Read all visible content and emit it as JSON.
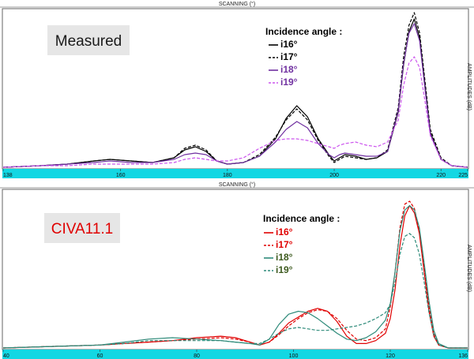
{
  "chart_data": [
    {
      "type": "line",
      "header": "SCANNING (°)",
      "right_label": "AMPLITUDES (dB)",
      "badge": "Measured",
      "legend_title": "Incidence angle :",
      "xlim": [
        138,
        225
      ],
      "ylim": [
        0,
        1
      ],
      "x_ticks": [
        "138",
        "160",
        "180",
        "200",
        "220",
        "225"
      ],
      "x_tick_values": [
        138,
        160,
        180,
        200,
        220,
        225
      ],
      "series": [
        {
          "name": "i16°",
          "color": "#000000",
          "dash": "solid",
          "x": [
            138,
            145,
            150,
            155,
            158,
            162,
            166,
            170,
            172,
            174,
            176,
            178,
            180,
            183,
            186,
            189,
            191,
            193,
            195,
            197,
            199,
            200,
            201,
            202,
            204,
            206,
            208,
            210,
            212,
            213,
            214,
            215,
            216,
            217,
            218,
            220,
            222,
            225
          ],
          "y": [
            0,
            0.01,
            0.02,
            0.04,
            0.05,
            0.04,
            0.03,
            0.06,
            0.11,
            0.13,
            0.1,
            0.04,
            0.02,
            0.03,
            0.07,
            0.18,
            0.31,
            0.39,
            0.32,
            0.18,
            0.08,
            0.04,
            0.06,
            0.08,
            0.07,
            0.05,
            0.06,
            0.1,
            0.35,
            0.65,
            0.86,
            0.94,
            0.82,
            0.52,
            0.22,
            0.05,
            0.01,
            0
          ]
        },
        {
          "name": "i17°",
          "color": "#000000",
          "dash": "dashed",
          "x": [
            138,
            145,
            150,
            155,
            158,
            162,
            166,
            170,
            172,
            174,
            176,
            178,
            180,
            183,
            186,
            189,
            191,
            193,
            195,
            197,
            199,
            200,
            201,
            202,
            204,
            206,
            208,
            210,
            212,
            213,
            214,
            215,
            216,
            217,
            218,
            220,
            222,
            225
          ],
          "y": [
            0,
            0.01,
            0.02,
            0.04,
            0.05,
            0.04,
            0.03,
            0.06,
            0.12,
            0.14,
            0.11,
            0.04,
            0.02,
            0.03,
            0.08,
            0.19,
            0.3,
            0.37,
            0.3,
            0.17,
            0.07,
            0.03,
            0.05,
            0.07,
            0.06,
            0.05,
            0.06,
            0.11,
            0.38,
            0.7,
            0.9,
            0.98,
            0.85,
            0.55,
            0.24,
            0.06,
            0.01,
            0
          ]
        },
        {
          "name": "i18°",
          "color": "#7030a0",
          "dash": "solid",
          "x": [
            138,
            145,
            150,
            155,
            158,
            162,
            166,
            170,
            172,
            174,
            176,
            178,
            180,
            183,
            186,
            189,
            191,
            193,
            195,
            197,
            199,
            200,
            201,
            202,
            204,
            206,
            208,
            210,
            212,
            213,
            214,
            215,
            216,
            217,
            218,
            220,
            222,
            225
          ],
          "y": [
            0,
            0.01,
            0.02,
            0.03,
            0.04,
            0.03,
            0.03,
            0.05,
            0.08,
            0.09,
            0.08,
            0.04,
            0.02,
            0.03,
            0.07,
            0.16,
            0.24,
            0.29,
            0.25,
            0.15,
            0.08,
            0.06,
            0.08,
            0.09,
            0.08,
            0.07,
            0.07,
            0.1,
            0.36,
            0.66,
            0.85,
            0.91,
            0.8,
            0.5,
            0.21,
            0.05,
            0.01,
            0
          ]
        },
        {
          "name": "i19°",
          "color": "#cc55ee",
          "dash": "dashed",
          "x": [
            138,
            145,
            150,
            155,
            158,
            162,
            166,
            170,
            172,
            174,
            176,
            178,
            180,
            183,
            186,
            189,
            191,
            193,
            195,
            197,
            199,
            200,
            201,
            202,
            204,
            206,
            208,
            210,
            212,
            213,
            214,
            215,
            216,
            217,
            218,
            220,
            222,
            225
          ],
          "y": [
            0,
            0.01,
            0.01,
            0.02,
            0.02,
            0.02,
            0.02,
            0.03,
            0.05,
            0.06,
            0.05,
            0.04,
            0.04,
            0.06,
            0.12,
            0.17,
            0.18,
            0.18,
            0.17,
            0.15,
            0.13,
            0.12,
            0.14,
            0.15,
            0.16,
            0.14,
            0.13,
            0.16,
            0.3,
            0.52,
            0.66,
            0.7,
            0.63,
            0.42,
            0.2,
            0.05,
            0.01,
            0
          ]
        }
      ]
    },
    {
      "type": "line",
      "header": "SCANNING (°)",
      "right_label": "AMPLITUDES (dB)",
      "badge": "CIVA11.1",
      "legend_title": "Incidence angle :",
      "xlim": [
        40,
        136
      ],
      "ylim": [
        0,
        1
      ],
      "x_ticks": [
        "40",
        "60",
        "80",
        "100",
        "120",
        "136"
      ],
      "x_tick_values": [
        40,
        60,
        80,
        100,
        120,
        136
      ],
      "series": [
        {
          "name": "i16°",
          "color": "#e00000",
          "dash": "solid",
          "x": [
            40,
            50,
            60,
            65,
            70,
            75,
            80,
            85,
            88,
            91,
            93,
            95,
            97,
            99,
            101,
            103,
            105,
            107,
            109,
            111,
            113,
            115,
            117,
            119,
            120,
            121,
            122,
            123,
            124,
            125,
            126,
            127,
            128,
            129,
            130,
            132,
            136
          ],
          "y": [
            0,
            0.01,
            0.02,
            0.03,
            0.04,
            0.05,
            0.07,
            0.08,
            0.07,
            0.04,
            0.02,
            0.04,
            0.1,
            0.17,
            0.21,
            0.25,
            0.27,
            0.25,
            0.18,
            0.08,
            0.03,
            0.03,
            0.05,
            0.1,
            0.2,
            0.4,
            0.7,
            0.9,
            0.97,
            0.92,
            0.78,
            0.52,
            0.25,
            0.08,
            0.02,
            0,
            0
          ]
        },
        {
          "name": "i17°",
          "color": "#e00000",
          "dash": "dashed",
          "x": [
            40,
            50,
            60,
            65,
            70,
            75,
            80,
            85,
            88,
            91,
            93,
            95,
            97,
            99,
            101,
            103,
            105,
            107,
            109,
            111,
            113,
            115,
            117,
            119,
            120,
            121,
            122,
            123,
            124,
            125,
            126,
            127,
            128,
            129,
            130,
            132,
            136
          ],
          "y": [
            0,
            0.01,
            0.02,
            0.03,
            0.04,
            0.05,
            0.06,
            0.07,
            0.06,
            0.04,
            0.02,
            0.04,
            0.09,
            0.15,
            0.2,
            0.24,
            0.26,
            0.25,
            0.2,
            0.12,
            0.06,
            0.05,
            0.07,
            0.13,
            0.28,
            0.52,
            0.82,
            0.98,
            1.0,
            0.95,
            0.8,
            0.55,
            0.28,
            0.1,
            0.02,
            0,
            0
          ]
        },
        {
          "name": "i18°",
          "color": "#2e8b7a",
          "dash": "solid",
          "x": [
            40,
            50,
            60,
            65,
            70,
            75,
            80,
            85,
            88,
            91,
            93,
            95,
            97,
            99,
            101,
            103,
            105,
            107,
            109,
            111,
            113,
            115,
            117,
            119,
            120,
            121,
            122,
            123,
            124,
            125,
            126,
            127,
            128,
            129,
            130,
            132,
            136
          ],
          "y": [
            0,
            0.01,
            0.02,
            0.04,
            0.06,
            0.07,
            0.06,
            0.05,
            0.04,
            0.03,
            0.02,
            0.06,
            0.16,
            0.23,
            0.25,
            0.24,
            0.2,
            0.15,
            0.1,
            0.06,
            0.05,
            0.07,
            0.11,
            0.19,
            0.3,
            0.52,
            0.8,
            0.94,
            0.97,
            0.94,
            0.82,
            0.58,
            0.32,
            0.12,
            0.03,
            0,
            0
          ]
        },
        {
          "name": "i19°",
          "color": "#2e8b7a",
          "dash": "dashed",
          "x": [
            40,
            50,
            60,
            65,
            70,
            75,
            80,
            85,
            88,
            91,
            93,
            95,
            97,
            99,
            101,
            103,
            105,
            107,
            109,
            111,
            113,
            115,
            117,
            119,
            120,
            121,
            122,
            123,
            124,
            125,
            126,
            127,
            128,
            129,
            130,
            132,
            136
          ],
          "y": [
            0,
            0.01,
            0.02,
            0.03,
            0.05,
            0.05,
            0.05,
            0.05,
            0.04,
            0.03,
            0.03,
            0.06,
            0.1,
            0.13,
            0.14,
            0.13,
            0.12,
            0.12,
            0.13,
            0.14,
            0.15,
            0.17,
            0.2,
            0.24,
            0.3,
            0.45,
            0.64,
            0.76,
            0.78,
            0.75,
            0.64,
            0.45,
            0.24,
            0.09,
            0.02,
            0,
            0
          ]
        }
      ]
    }
  ]
}
